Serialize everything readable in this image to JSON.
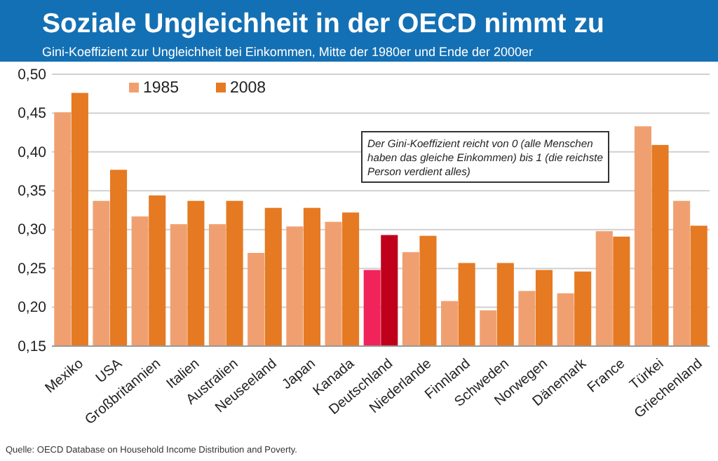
{
  "chart_data": {
    "type": "bar",
    "title": "Soziale Ungleichheit in der OECD nimmt zu",
    "subtitle": "Gini-Koeffizient zur Ungleichheit bei Einkommen, Mitte der 1980er und Ende der 2000er",
    "categories": [
      "Mexiko",
      "USA",
      "Großbritannien",
      "Italien",
      "Australien",
      "Neuseeland",
      "Japan",
      "Kanada",
      "Deutschland",
      "Niederlande",
      "Finnland",
      "Schweden",
      "Norwegen",
      "Dänemark",
      "France",
      "Türkei",
      "Griechenland"
    ],
    "series": [
      {
        "name": "1985",
        "color": "#f0a070",
        "colors": [
          "#f0a070",
          "#f0a070",
          "#f0a070",
          "#f0a070",
          "#f0a070",
          "#f0a070",
          "#f0a070",
          "#f0a070",
          "#f0245a",
          "#f0a070",
          "#f0a070",
          "#f0a070",
          "#f0a070",
          "#f0a070",
          "#f0a070",
          "#f0a070",
          "#f0a070"
        ],
        "values": [
          0.451,
          0.337,
          0.317,
          0.307,
          0.307,
          0.27,
          0.304,
          0.31,
          0.248,
          0.271,
          0.208,
          0.196,
          0.221,
          0.218,
          0.298,
          0.433,
          0.337
        ]
      },
      {
        "name": "2008",
        "color": "#e57a22",
        "colors": [
          "#e57a22",
          "#e57a22",
          "#e57a22",
          "#e57a22",
          "#e57a22",
          "#e57a22",
          "#e57a22",
          "#e57a22",
          "#c0001a",
          "#e57a22",
          "#e57a22",
          "#e57a22",
          "#e57a22",
          "#e57a22",
          "#e57a22",
          "#e57a22",
          "#e57a22"
        ],
        "values": [
          0.476,
          0.377,
          0.344,
          0.337,
          0.337,
          0.328,
          0.328,
          0.322,
          0.293,
          0.292,
          0.257,
          0.257,
          0.248,
          0.246,
          0.291,
          0.409,
          0.305
        ]
      }
    ],
    "ylim": [
      0.15,
      0.5
    ],
    "yticks": [
      {
        "value": 0.15,
        "label": "0,15"
      },
      {
        "value": 0.2,
        "label": "0,20"
      },
      {
        "value": 0.25,
        "label": "0,25"
      },
      {
        "value": 0.3,
        "label": "0,30"
      },
      {
        "value": 0.35,
        "label": "0,35"
      },
      {
        "value": 0.4,
        "label": "0,40"
      },
      {
        "value": 0.45,
        "label": "0,45"
      },
      {
        "value": 0.5,
        "label": "0,50"
      }
    ],
    "grid": "y",
    "legend": "top left",
    "annotations": [
      "Der Gini-Koeffizient reicht von 0 (alle Menschen haben das gleiche Einkommen) bis 1 (die reichste Person verdient alles)",
      "Quelle: OECD Database on Household Income Distribution and Poverty."
    ]
  }
}
